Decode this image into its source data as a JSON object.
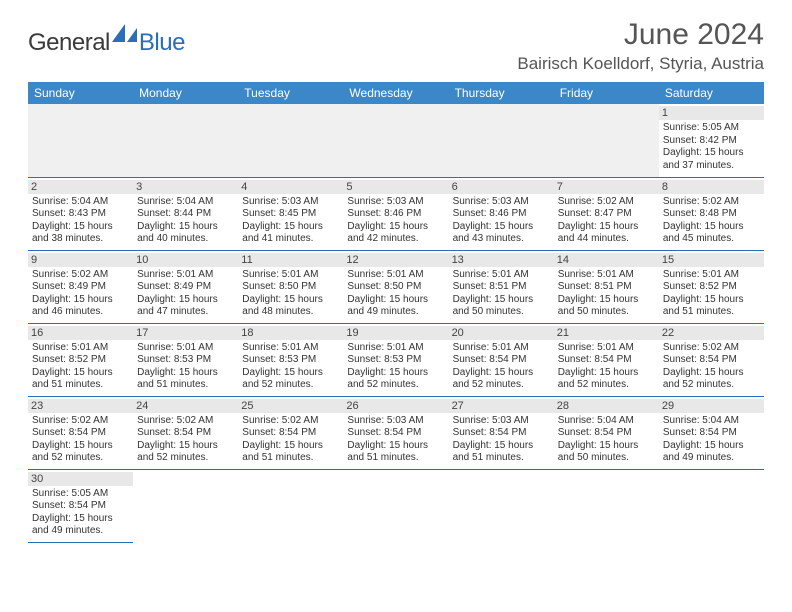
{
  "logo": {
    "text1": "General",
    "text2": "Blue"
  },
  "title": "June 2024",
  "location": "Bairisch Koelldorf, Styria, Austria",
  "colors": {
    "header_bg": "#3b87c8",
    "header_fg": "#ffffff",
    "border": "#2a6db8",
    "daynum_bg": "#e8e8e8",
    "blank_bg": "#f0f0f0",
    "logo_blue": "#2a6db8",
    "logo_gray": "#3a3a3a"
  },
  "day_headers": [
    "Sunday",
    "Monday",
    "Tuesday",
    "Wednesday",
    "Thursday",
    "Friday",
    "Saturday"
  ],
  "weeks": [
    [
      null,
      null,
      null,
      null,
      null,
      null,
      {
        "n": "1",
        "sr": "Sunrise: 5:05 AM",
        "ss": "Sunset: 8:42 PM",
        "d1": "Daylight: 15 hours",
        "d2": "and 37 minutes."
      }
    ],
    [
      {
        "n": "2",
        "sr": "Sunrise: 5:04 AM",
        "ss": "Sunset: 8:43 PM",
        "d1": "Daylight: 15 hours",
        "d2": "and 38 minutes."
      },
      {
        "n": "3",
        "sr": "Sunrise: 5:04 AM",
        "ss": "Sunset: 8:44 PM",
        "d1": "Daylight: 15 hours",
        "d2": "and 40 minutes."
      },
      {
        "n": "4",
        "sr": "Sunrise: 5:03 AM",
        "ss": "Sunset: 8:45 PM",
        "d1": "Daylight: 15 hours",
        "d2": "and 41 minutes."
      },
      {
        "n": "5",
        "sr": "Sunrise: 5:03 AM",
        "ss": "Sunset: 8:46 PM",
        "d1": "Daylight: 15 hours",
        "d2": "and 42 minutes."
      },
      {
        "n": "6",
        "sr": "Sunrise: 5:03 AM",
        "ss": "Sunset: 8:46 PM",
        "d1": "Daylight: 15 hours",
        "d2": "and 43 minutes."
      },
      {
        "n": "7",
        "sr": "Sunrise: 5:02 AM",
        "ss": "Sunset: 8:47 PM",
        "d1": "Daylight: 15 hours",
        "d2": "and 44 minutes."
      },
      {
        "n": "8",
        "sr": "Sunrise: 5:02 AM",
        "ss": "Sunset: 8:48 PM",
        "d1": "Daylight: 15 hours",
        "d2": "and 45 minutes."
      }
    ],
    [
      {
        "n": "9",
        "sr": "Sunrise: 5:02 AM",
        "ss": "Sunset: 8:49 PM",
        "d1": "Daylight: 15 hours",
        "d2": "and 46 minutes."
      },
      {
        "n": "10",
        "sr": "Sunrise: 5:01 AM",
        "ss": "Sunset: 8:49 PM",
        "d1": "Daylight: 15 hours",
        "d2": "and 47 minutes."
      },
      {
        "n": "11",
        "sr": "Sunrise: 5:01 AM",
        "ss": "Sunset: 8:50 PM",
        "d1": "Daylight: 15 hours",
        "d2": "and 48 minutes."
      },
      {
        "n": "12",
        "sr": "Sunrise: 5:01 AM",
        "ss": "Sunset: 8:50 PM",
        "d1": "Daylight: 15 hours",
        "d2": "and 49 minutes."
      },
      {
        "n": "13",
        "sr": "Sunrise: 5:01 AM",
        "ss": "Sunset: 8:51 PM",
        "d1": "Daylight: 15 hours",
        "d2": "and 50 minutes."
      },
      {
        "n": "14",
        "sr": "Sunrise: 5:01 AM",
        "ss": "Sunset: 8:51 PM",
        "d1": "Daylight: 15 hours",
        "d2": "and 50 minutes."
      },
      {
        "n": "15",
        "sr": "Sunrise: 5:01 AM",
        "ss": "Sunset: 8:52 PM",
        "d1": "Daylight: 15 hours",
        "d2": "and 51 minutes."
      }
    ],
    [
      {
        "n": "16",
        "sr": "Sunrise: 5:01 AM",
        "ss": "Sunset: 8:52 PM",
        "d1": "Daylight: 15 hours",
        "d2": "and 51 minutes."
      },
      {
        "n": "17",
        "sr": "Sunrise: 5:01 AM",
        "ss": "Sunset: 8:53 PM",
        "d1": "Daylight: 15 hours",
        "d2": "and 51 minutes."
      },
      {
        "n": "18",
        "sr": "Sunrise: 5:01 AM",
        "ss": "Sunset: 8:53 PM",
        "d1": "Daylight: 15 hours",
        "d2": "and 52 minutes."
      },
      {
        "n": "19",
        "sr": "Sunrise: 5:01 AM",
        "ss": "Sunset: 8:53 PM",
        "d1": "Daylight: 15 hours",
        "d2": "and 52 minutes."
      },
      {
        "n": "20",
        "sr": "Sunrise: 5:01 AM",
        "ss": "Sunset: 8:54 PM",
        "d1": "Daylight: 15 hours",
        "d2": "and 52 minutes."
      },
      {
        "n": "21",
        "sr": "Sunrise: 5:01 AM",
        "ss": "Sunset: 8:54 PM",
        "d1": "Daylight: 15 hours",
        "d2": "and 52 minutes."
      },
      {
        "n": "22",
        "sr": "Sunrise: 5:02 AM",
        "ss": "Sunset: 8:54 PM",
        "d1": "Daylight: 15 hours",
        "d2": "and 52 minutes."
      }
    ],
    [
      {
        "n": "23",
        "sr": "Sunrise: 5:02 AM",
        "ss": "Sunset: 8:54 PM",
        "d1": "Daylight: 15 hours",
        "d2": "and 52 minutes."
      },
      {
        "n": "24",
        "sr": "Sunrise: 5:02 AM",
        "ss": "Sunset: 8:54 PM",
        "d1": "Daylight: 15 hours",
        "d2": "and 52 minutes."
      },
      {
        "n": "25",
        "sr": "Sunrise: 5:02 AM",
        "ss": "Sunset: 8:54 PM",
        "d1": "Daylight: 15 hours",
        "d2": "and 51 minutes."
      },
      {
        "n": "26",
        "sr": "Sunrise: 5:03 AM",
        "ss": "Sunset: 8:54 PM",
        "d1": "Daylight: 15 hours",
        "d2": "and 51 minutes."
      },
      {
        "n": "27",
        "sr": "Sunrise: 5:03 AM",
        "ss": "Sunset: 8:54 PM",
        "d1": "Daylight: 15 hours",
        "d2": "and 51 minutes."
      },
      {
        "n": "28",
        "sr": "Sunrise: 5:04 AM",
        "ss": "Sunset: 8:54 PM",
        "d1": "Daylight: 15 hours",
        "d2": "and 50 minutes."
      },
      {
        "n": "29",
        "sr": "Sunrise: 5:04 AM",
        "ss": "Sunset: 8:54 PM",
        "d1": "Daylight: 15 hours",
        "d2": "and 49 minutes."
      }
    ],
    [
      {
        "n": "30",
        "sr": "Sunrise: 5:05 AM",
        "ss": "Sunset: 8:54 PM",
        "d1": "Daylight: 15 hours",
        "d2": "and 49 minutes."
      },
      null,
      null,
      null,
      null,
      null,
      null
    ]
  ]
}
